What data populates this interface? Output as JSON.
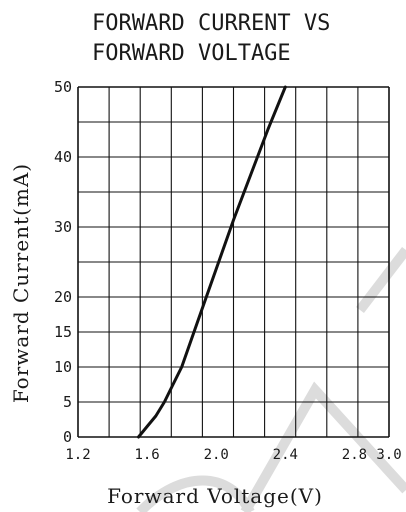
{
  "chart_data": {
    "type": "line",
    "title_line1": "FORWARD CURRENT VS",
    "title_line2": "FORWARD VOLTAGE",
    "xlabel": "Forward Voltage(V)",
    "ylabel": "Forward Current(mA)",
    "xlim": [
      1.2,
      3.0
    ],
    "ylim": [
      0,
      50
    ],
    "x_ticks": [
      "1.2",
      "1.6",
      "2.0",
      "2.4",
      "2.8",
      "3.0"
    ],
    "y_ticks": [
      "0",
      "5",
      "10",
      "15",
      "20",
      "30",
      "40",
      "50"
    ],
    "grid": true,
    "series": [
      {
        "x": [
          1.55,
          1.6,
          1.65,
          1.7,
          1.75,
          1.8,
          1.9,
          2.0,
          2.1,
          2.2,
          2.3,
          2.4
        ],
        "y": [
          0,
          1.5,
          3,
          5,
          7.5,
          10,
          17,
          24,
          31,
          37.5,
          44,
          50
        ]
      }
    ]
  }
}
